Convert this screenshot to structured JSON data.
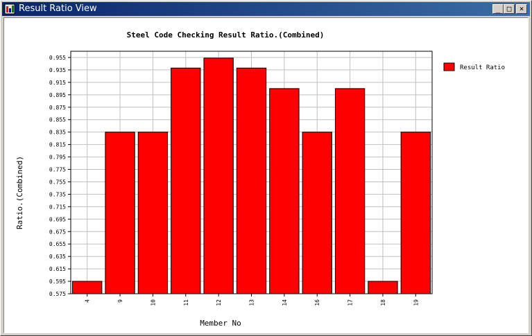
{
  "window": {
    "title": "Result Ratio View"
  },
  "chart_data": {
    "type": "bar",
    "title": "Steel Code Checking Result Ratio.(Combined)",
    "xlabel": "Member No",
    "ylabel": "Ratio.(Combined)",
    "ylim": [
      0.575,
      0.965
    ],
    "yticks": [
      0.575,
      0.595,
      0.615,
      0.635,
      0.655,
      0.675,
      0.695,
      0.715,
      0.735,
      0.755,
      0.775,
      0.795,
      0.815,
      0.835,
      0.855,
      0.875,
      0.895,
      0.915,
      0.935,
      0.955
    ],
    "categories": [
      "4",
      "9",
      "10",
      "11",
      "12",
      "13",
      "14",
      "16",
      "17",
      "18",
      "19"
    ],
    "series": [
      {
        "name": "Result Ratio",
        "color": "#ff0000",
        "values": [
          0.595,
          0.835,
          0.835,
          0.938,
          0.954,
          0.938,
          0.905,
          0.835,
          0.905,
          0.595,
          0.835
        ]
      }
    ],
    "grid": true,
    "legend": "right"
  }
}
